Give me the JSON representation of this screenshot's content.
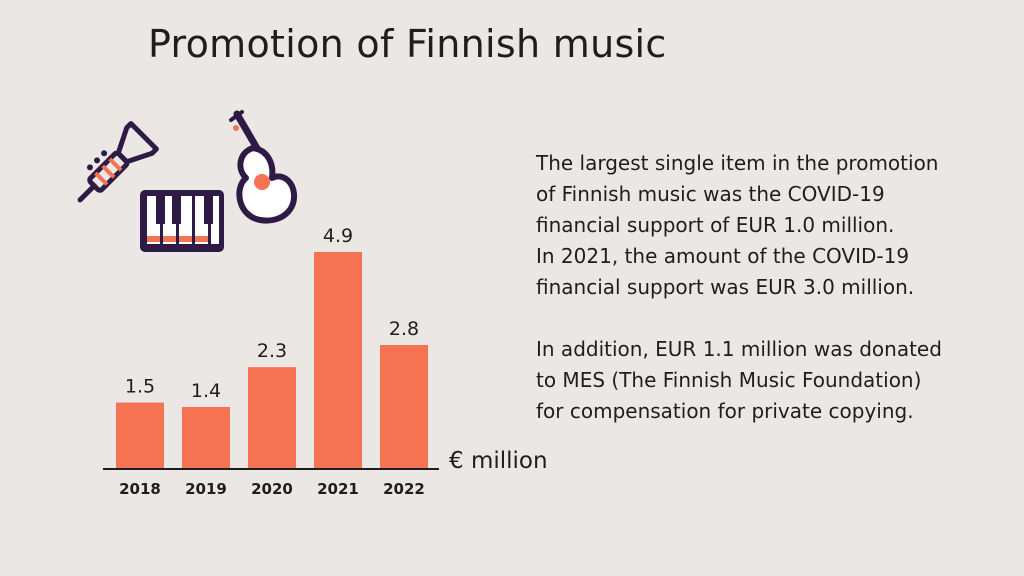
{
  "title": "Promotion of Finnish music",
  "unit_label": "€ million",
  "text": {
    "paragraph1": "The largest single item in the promotion\nof Finnish music was the COVID-19\nfinancial support of EUR 1.0 million.\nIn 2021, the amount of the COVID-19\nfinancial support was EUR 3.0 million.",
    "paragraph2": "In addition, EUR 1.1 million was donated\nto MES (The Finnish Music Foundation)\nfor compensation for private copying."
  },
  "icons": [
    "trumpet-icon",
    "piano-keys-icon",
    "guitar-icon"
  ],
  "colors": {
    "bar": "#f57352",
    "background": "#ebe7e4",
    "icon": "#2e1b45",
    "text": "#1e1e1e"
  },
  "chart_data": {
    "type": "bar",
    "categories": [
      "2018",
      "2019",
      "2020",
      "2021",
      "2022"
    ],
    "values": [
      1.5,
      1.4,
      2.3,
      4.9,
      2.8
    ],
    "value_labels": [
      "1.5",
      "1.4",
      "2.3",
      "4.9",
      "2.8"
    ],
    "title": "Promotion of Finnish music",
    "ylabel": "€ million",
    "ylim": [
      0,
      4.9
    ],
    "grid": false,
    "legend": "none"
  }
}
